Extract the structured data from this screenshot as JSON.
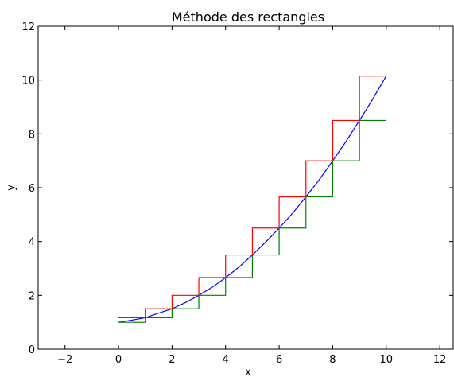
{
  "chart_data": {
    "type": "line",
    "title": "Méthode des rectangles",
    "xlabel": "x",
    "ylabel": "y",
    "xlim": [
      -3,
      12.5
    ],
    "ylim": [
      0,
      12
    ],
    "xticks": [
      -2,
      0,
      2,
      4,
      6,
      8,
      10,
      12
    ],
    "yticks": [
      0,
      2,
      4,
      6,
      8,
      10,
      12
    ],
    "xtick_labels": [
      "−2",
      "0",
      "2",
      "4",
      "6",
      "8",
      "10",
      "12"
    ],
    "ytick_labels": [
      "0",
      "2",
      "4",
      "6",
      "8",
      "10",
      "12"
    ],
    "grid": false,
    "series": [
      {
        "color": "#0000ff",
        "style": "line",
        "x": [
          0,
          0.5,
          1,
          1.5,
          2,
          2.5,
          3,
          3.5,
          4,
          4.5,
          5,
          5.5,
          6,
          6.5,
          7,
          7.5,
          8,
          8.5,
          9,
          9.5,
          10
        ],
        "y": [
          1.0,
          1.08,
          1.17,
          1.34,
          1.5,
          1.73,
          2.0,
          2.3,
          2.66,
          3.05,
          3.5,
          3.98,
          4.5,
          5.05,
          5.66,
          6.3,
          7.0,
          7.72,
          8.5,
          9.3,
          10.15
        ]
      },
      {
        "color": "#ff0000",
        "style": "steps-post",
        "x": [
          0,
          1,
          2,
          3,
          4,
          5,
          6,
          7,
          8,
          9,
          10
        ],
        "y": [
          1.17,
          1.5,
          2.0,
          2.66,
          3.5,
          4.5,
          5.66,
          7.0,
          8.5,
          10.15,
          10.15
        ]
      },
      {
        "color": "#008000",
        "style": "steps-post",
        "x": [
          0,
          1,
          2,
          3,
          4,
          5,
          6,
          7,
          8,
          9,
          10
        ],
        "y": [
          1.0,
          1.17,
          1.5,
          2.0,
          2.66,
          3.5,
          4.5,
          5.66,
          7.0,
          8.5,
          8.5
        ]
      }
    ]
  }
}
